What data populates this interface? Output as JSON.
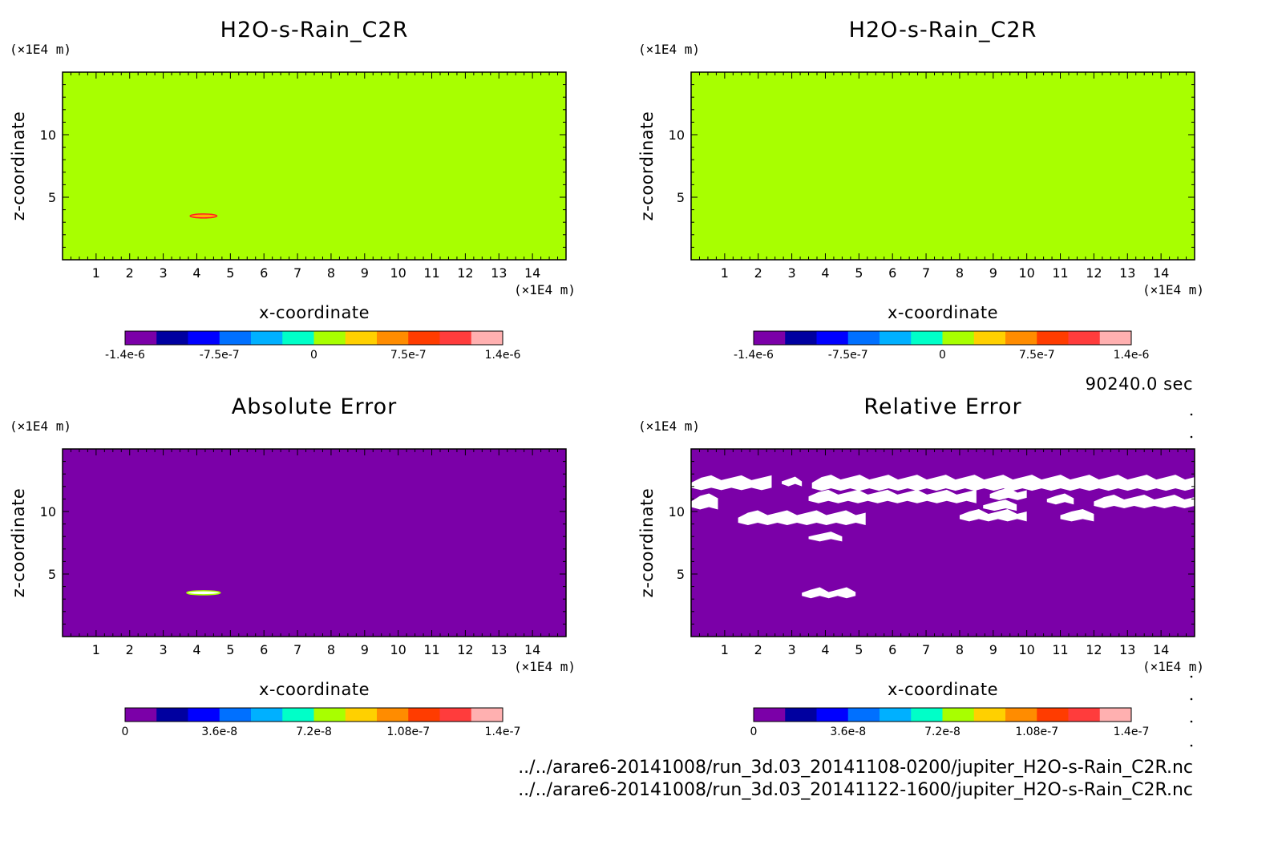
{
  "time_label": "90240.0 sec",
  "files": [
    "../../arare6-20141008/run_3d.03_20141108-0200/jupiter_H2O-s-Rain_C2R.nc",
    "../../arare6-20141008/run_3d.03_20141122-1600/jupiter_H2O-s-Rain_C2R.nc"
  ],
  "chart_data": [
    {
      "type": "heatmap",
      "title": "H2O-s-Rain_C2R",
      "xlabel": "x-coordinate",
      "ylabel": "z-coordinate",
      "x_unit": "(×1E4 m)",
      "y_unit": "(×1E4 m)",
      "xlim": [
        0,
        15
      ],
      "ylim": [
        0,
        15
      ],
      "x_ticks": [
        1,
        2,
        3,
        4,
        5,
        6,
        7,
        8,
        9,
        10,
        11,
        12,
        13,
        14
      ],
      "y_ticks": [
        5,
        10
      ],
      "background_value": 0,
      "background_color": "#a8ff00",
      "features": [
        {
          "type": "thin-lens",
          "x_range": [
            3.8,
            4.6
          ],
          "z": 3.5,
          "outline_color": "#ff2020",
          "fill_color": "#ffb000"
        }
      ],
      "colorbar": {
        "colors": [
          "#7b00a8",
          "#0000a0",
          "#0000ff",
          "#0070ff",
          "#00b0ff",
          "#00ffc8",
          "#a8ff00",
          "#ffd000",
          "#ff8c00",
          "#ff3c00",
          "#ff3c3c",
          "#ffb0b0"
        ],
        "tick_labels": [
          "-1.4e-6",
          "-7.5e-7",
          "0",
          "7.5e-7",
          "1.4e-6"
        ]
      }
    },
    {
      "type": "heatmap",
      "title": "H2O-s-Rain_C2R",
      "xlabel": "x-coordinate",
      "ylabel": "z-coordinate",
      "x_unit": "(×1E4 m)",
      "y_unit": "(×1E4 m)",
      "xlim": [
        0,
        15
      ],
      "ylim": [
        0,
        15
      ],
      "x_ticks": [
        1,
        2,
        3,
        4,
        5,
        6,
        7,
        8,
        9,
        10,
        11,
        12,
        13,
        14
      ],
      "y_ticks": [
        5,
        10
      ],
      "background_value": 0,
      "background_color": "#a8ff00",
      "features": [],
      "colorbar": {
        "colors": [
          "#7b00a8",
          "#0000a0",
          "#0000ff",
          "#0070ff",
          "#00b0ff",
          "#00ffc8",
          "#a8ff00",
          "#ffd000",
          "#ff8c00",
          "#ff3c00",
          "#ff3c3c",
          "#ffb0b0"
        ],
        "tick_labels": [
          "-1.4e-6",
          "-7.5e-7",
          "0",
          "7.5e-7",
          "1.4e-6"
        ]
      }
    },
    {
      "type": "heatmap",
      "title": "Absolute Error",
      "xlabel": "x-coordinate",
      "ylabel": "z-coordinate",
      "x_unit": "(×1E4 m)",
      "y_unit": "(×1E4 m)",
      "xlim": [
        0,
        15
      ],
      "ylim": [
        0,
        15
      ],
      "x_ticks": [
        1,
        2,
        3,
        4,
        5,
        6,
        7,
        8,
        9,
        10,
        11,
        12,
        13,
        14
      ],
      "y_ticks": [
        5,
        10
      ],
      "background_value": 0,
      "background_color": "#7b00a8",
      "features": [
        {
          "type": "thin-lens",
          "x_range": [
            3.7,
            4.7
          ],
          "z": 3.5,
          "outline_color": "#a8ff00",
          "fill_color": "#ffffff"
        }
      ],
      "colorbar": {
        "colors": [
          "#7b00a8",
          "#0000a0",
          "#0000ff",
          "#0070ff",
          "#00b0ff",
          "#00ffc8",
          "#a8ff00",
          "#ffd000",
          "#ff8c00",
          "#ff3c00",
          "#ff3c3c",
          "#ffb0b0"
        ],
        "tick_labels": [
          "0",
          "3.6e-8",
          "7.2e-8",
          "1.08e-7",
          "1.4e-7"
        ]
      }
    },
    {
      "type": "heatmap",
      "title": "Relative Error",
      "xlabel": "x-coordinate",
      "ylabel": "z-coordinate",
      "x_unit": "(×1E4 m)",
      "y_unit": "(×1E4 m)",
      "xlim": [
        0,
        15
      ],
      "ylim": [
        0,
        15
      ],
      "x_ticks": [
        1,
        2,
        3,
        4,
        5,
        6,
        7,
        8,
        9,
        10,
        11,
        12,
        13,
        14
      ],
      "y_ticks": [
        5,
        10
      ],
      "background_value": 0,
      "background_color": "#7b00a8",
      "features": [
        {
          "type": "blob",
          "x_range": [
            0.0,
            2.4
          ],
          "z": 12.3,
          "thickness": 0.8,
          "fill_color": "#ffffff"
        },
        {
          "type": "blob",
          "x_range": [
            2.7,
            3.3
          ],
          "z": 12.4,
          "thickness": 0.4,
          "fill_color": "#ffffff"
        },
        {
          "type": "blob",
          "x_range": [
            3.6,
            15.0
          ],
          "z": 12.3,
          "thickness": 0.9,
          "fill_color": "#ffffff"
        },
        {
          "type": "blob",
          "x_range": [
            3.5,
            8.5
          ],
          "z": 11.2,
          "thickness": 0.7,
          "fill_color": "#ffffff"
        },
        {
          "type": "blob",
          "x_range": [
            8.9,
            10.0
          ],
          "z": 11.4,
          "thickness": 0.6,
          "fill_color": "#ffffff"
        },
        {
          "type": "blob",
          "x_range": [
            8.7,
            9.7
          ],
          "z": 10.5,
          "thickness": 0.5,
          "fill_color": "#ffffff"
        },
        {
          "type": "blob",
          "x_range": [
            10.6,
            11.4
          ],
          "z": 11.0,
          "thickness": 0.5,
          "fill_color": "#ffffff"
        },
        {
          "type": "blob",
          "x_range": [
            12.0,
            15.0
          ],
          "z": 10.8,
          "thickness": 0.7,
          "fill_color": "#ffffff"
        },
        {
          "type": "blob",
          "x_range": [
            0.0,
            0.8
          ],
          "z": 10.8,
          "thickness": 0.9,
          "fill_color": "#ffffff"
        },
        {
          "type": "blob",
          "x_range": [
            1.4,
            5.2
          ],
          "z": 9.5,
          "thickness": 0.8,
          "fill_color": "#ffffff"
        },
        {
          "type": "blob",
          "x_range": [
            8.0,
            10.0
          ],
          "z": 9.7,
          "thickness": 0.6,
          "fill_color": "#ffffff"
        },
        {
          "type": "blob",
          "x_range": [
            11.0,
            12.0
          ],
          "z": 9.7,
          "thickness": 0.6,
          "fill_color": "#ffffff"
        },
        {
          "type": "blob",
          "x_range": [
            3.5,
            4.5
          ],
          "z": 8.0,
          "thickness": 0.4,
          "fill_color": "#ffffff"
        },
        {
          "type": "blob",
          "x_range": [
            3.3,
            4.9
          ],
          "z": 3.5,
          "thickness": 0.5,
          "fill_color": "#ffffff"
        }
      ],
      "colorbar": {
        "colors": [
          "#7b00a8",
          "#0000a0",
          "#0000ff",
          "#0070ff",
          "#00b0ff",
          "#00ffc8",
          "#a8ff00",
          "#ffd000",
          "#ff8c00",
          "#ff3c00",
          "#ff3c3c",
          "#ffb0b0"
        ],
        "tick_labels": [
          "0",
          "3.6e-8",
          "7.2e-8",
          "1.08e-7",
          "1.4e-7"
        ]
      }
    }
  ]
}
